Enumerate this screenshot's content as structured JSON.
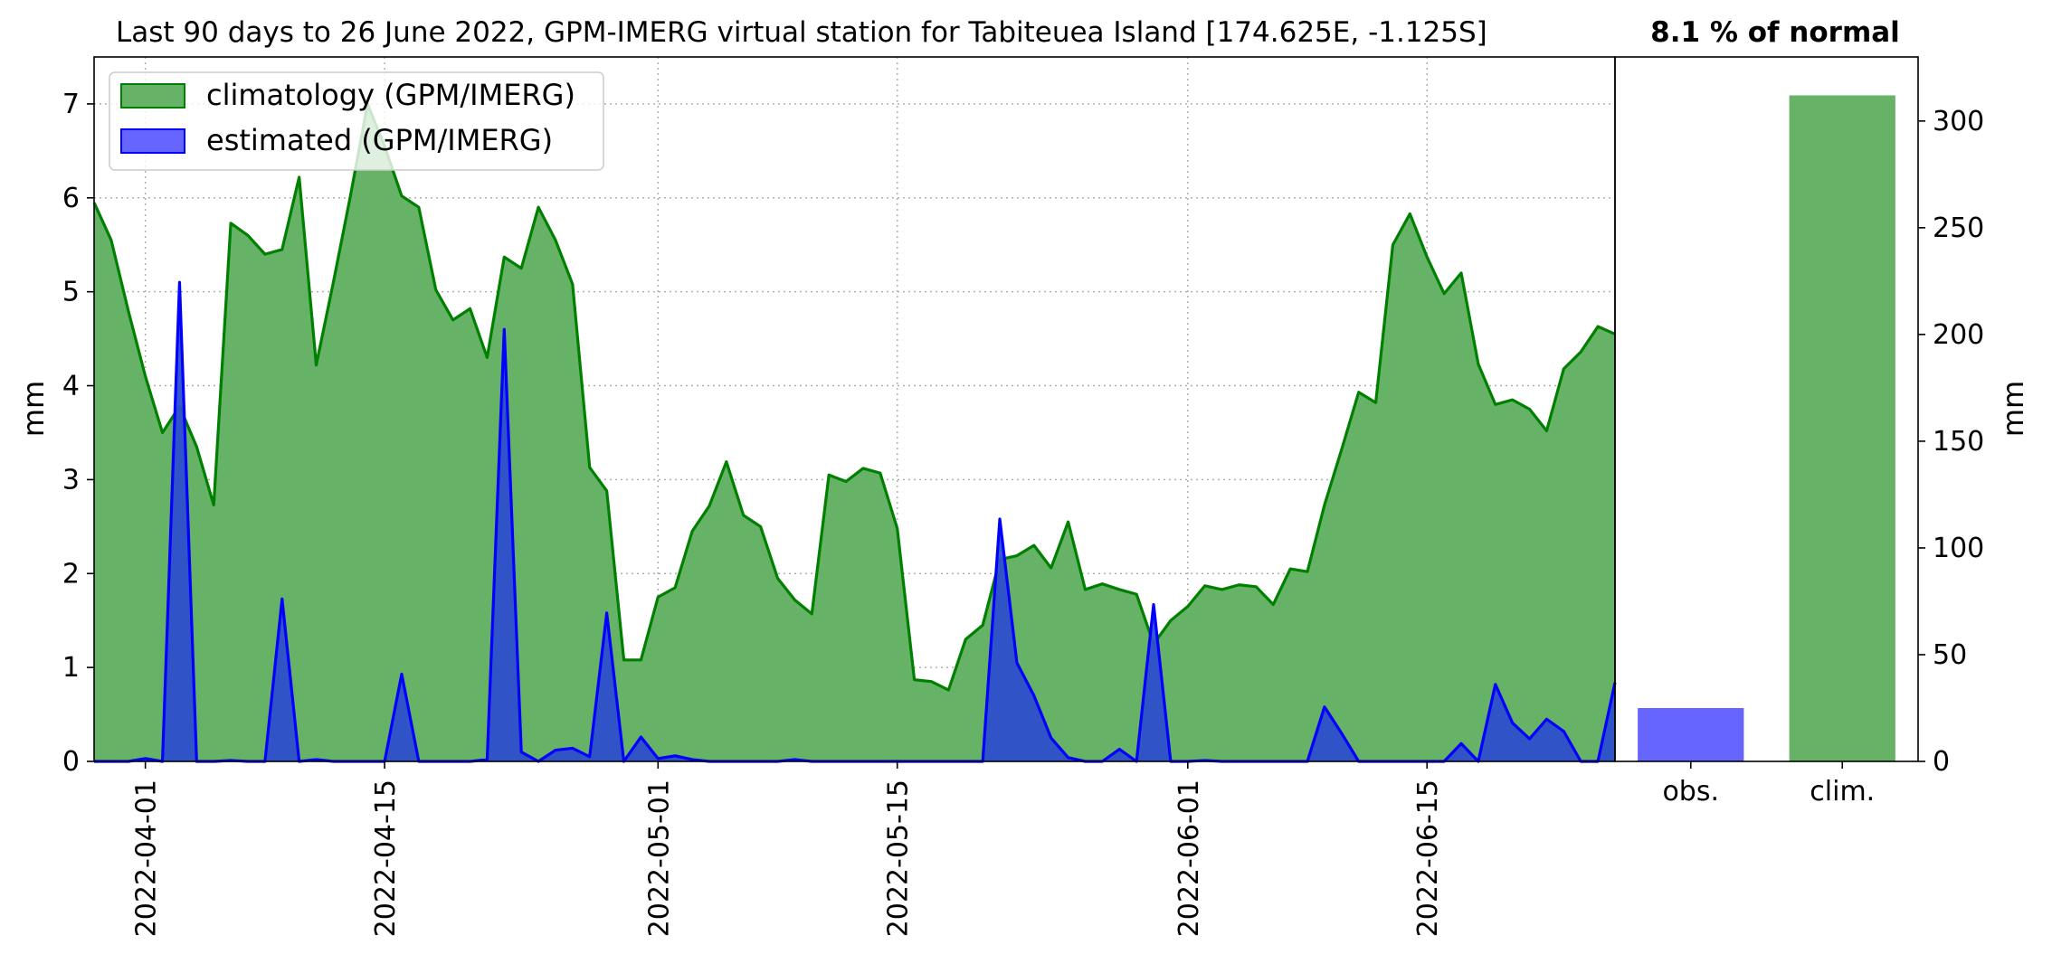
{
  "chart_data": [
    {
      "type": "area",
      "title": "Last 90 days to 26 June 2022, GPM-IMERG virtual station for Tabiteuea Island [174.625E, -1.125S]",
      "xlabel": "",
      "ylabel": "mm",
      "x_start": "2022-03-29",
      "x_end": "2022-06-26",
      "ylim": [
        0,
        7.5
      ],
      "yticks": [
        0,
        1,
        2,
        3,
        4,
        5,
        6,
        7
      ],
      "xticks": [
        "2022-04-01",
        "2022-04-15",
        "2022-05-01",
        "2022-05-15",
        "2022-06-01",
        "2022-06-15"
      ],
      "grid": true,
      "legend_position": "top-left",
      "series": [
        {
          "name": "climatology (GPM/IMERG)",
          "fill": "#66b266",
          "line": "#008000",
          "values": [
            5.95,
            5.55,
            4.8,
            4.1,
            3.5,
            3.78,
            3.35,
            2.73,
            5.73,
            5.6,
            5.4,
            5.45,
            6.22,
            4.22,
            5.1,
            6.02,
            7.0,
            6.55,
            6.02,
            5.9,
            5.02,
            4.7,
            4.82,
            4.3,
            5.37,
            5.25,
            5.9,
            5.55,
            5.08,
            3.13,
            2.88,
            1.08,
            1.08,
            1.75,
            1.85,
            2.45,
            2.72,
            3.19,
            2.62,
            2.5,
            1.95,
            1.72,
            1.57,
            3.05,
            2.98,
            3.12,
            3.07,
            2.48,
            0.87,
            0.85,
            0.76,
            1.3,
            1.45,
            2.15,
            2.19,
            2.3,
            2.06,
            2.55,
            1.83,
            1.89,
            1.83,
            1.78,
            1.25,
            1.5,
            1.65,
            1.87,
            1.83,
            1.88,
            1.86,
            1.67,
            2.05,
            2.02,
            2.73,
            3.32,
            3.93,
            3.82,
            5.5,
            5.83,
            5.37,
            4.98,
            5.2,
            4.23,
            3.8,
            3.85,
            3.75,
            3.52,
            4.18,
            4.36,
            4.63,
            4.55
          ]
        },
        {
          "name": "estimated (GPM/IMERG)",
          "fill": "#2d4fcc",
          "line": "#0000ff",
          "values": [
            0,
            0,
            0,
            0.03,
            0,
            5.1,
            0,
            0,
            0.01,
            0,
            0,
            1.73,
            0,
            0.02,
            0,
            0,
            0,
            0,
            0.93,
            0,
            0,
            0,
            0,
            0.02,
            4.6,
            0.1,
            0,
            0.12,
            0.14,
            0.05,
            1.58,
            0,
            0.26,
            0.03,
            0.06,
            0.02,
            0,
            0,
            0,
            0,
            0,
            0.02,
            0,
            0,
            0,
            0,
            0,
            0,
            0,
            0,
            0,
            0,
            0,
            2.58,
            1.05,
            0.7,
            0.25,
            0.04,
            0,
            0,
            0.13,
            0,
            1.67,
            0,
            0,
            0.01,
            0,
            0,
            0,
            0,
            0,
            0,
            0.58,
            0.3,
            0,
            0,
            0,
            0,
            0,
            0,
            0.19,
            0,
            0.82,
            0.41,
            0.24,
            0.45,
            0.32,
            0,
            0,
            0.84
          ]
        }
      ]
    },
    {
      "type": "bar",
      "title": "8.1 % of normal",
      "ylabel": "mm",
      "ylim": [
        0,
        330
      ],
      "yticks": [
        0,
        50,
        100,
        150,
        200,
        250,
        300
      ],
      "categories": [
        "obs.",
        "clim."
      ],
      "values": [
        25,
        312
      ],
      "colors": [
        "#6666ff",
        "#66b266"
      ]
    }
  ]
}
